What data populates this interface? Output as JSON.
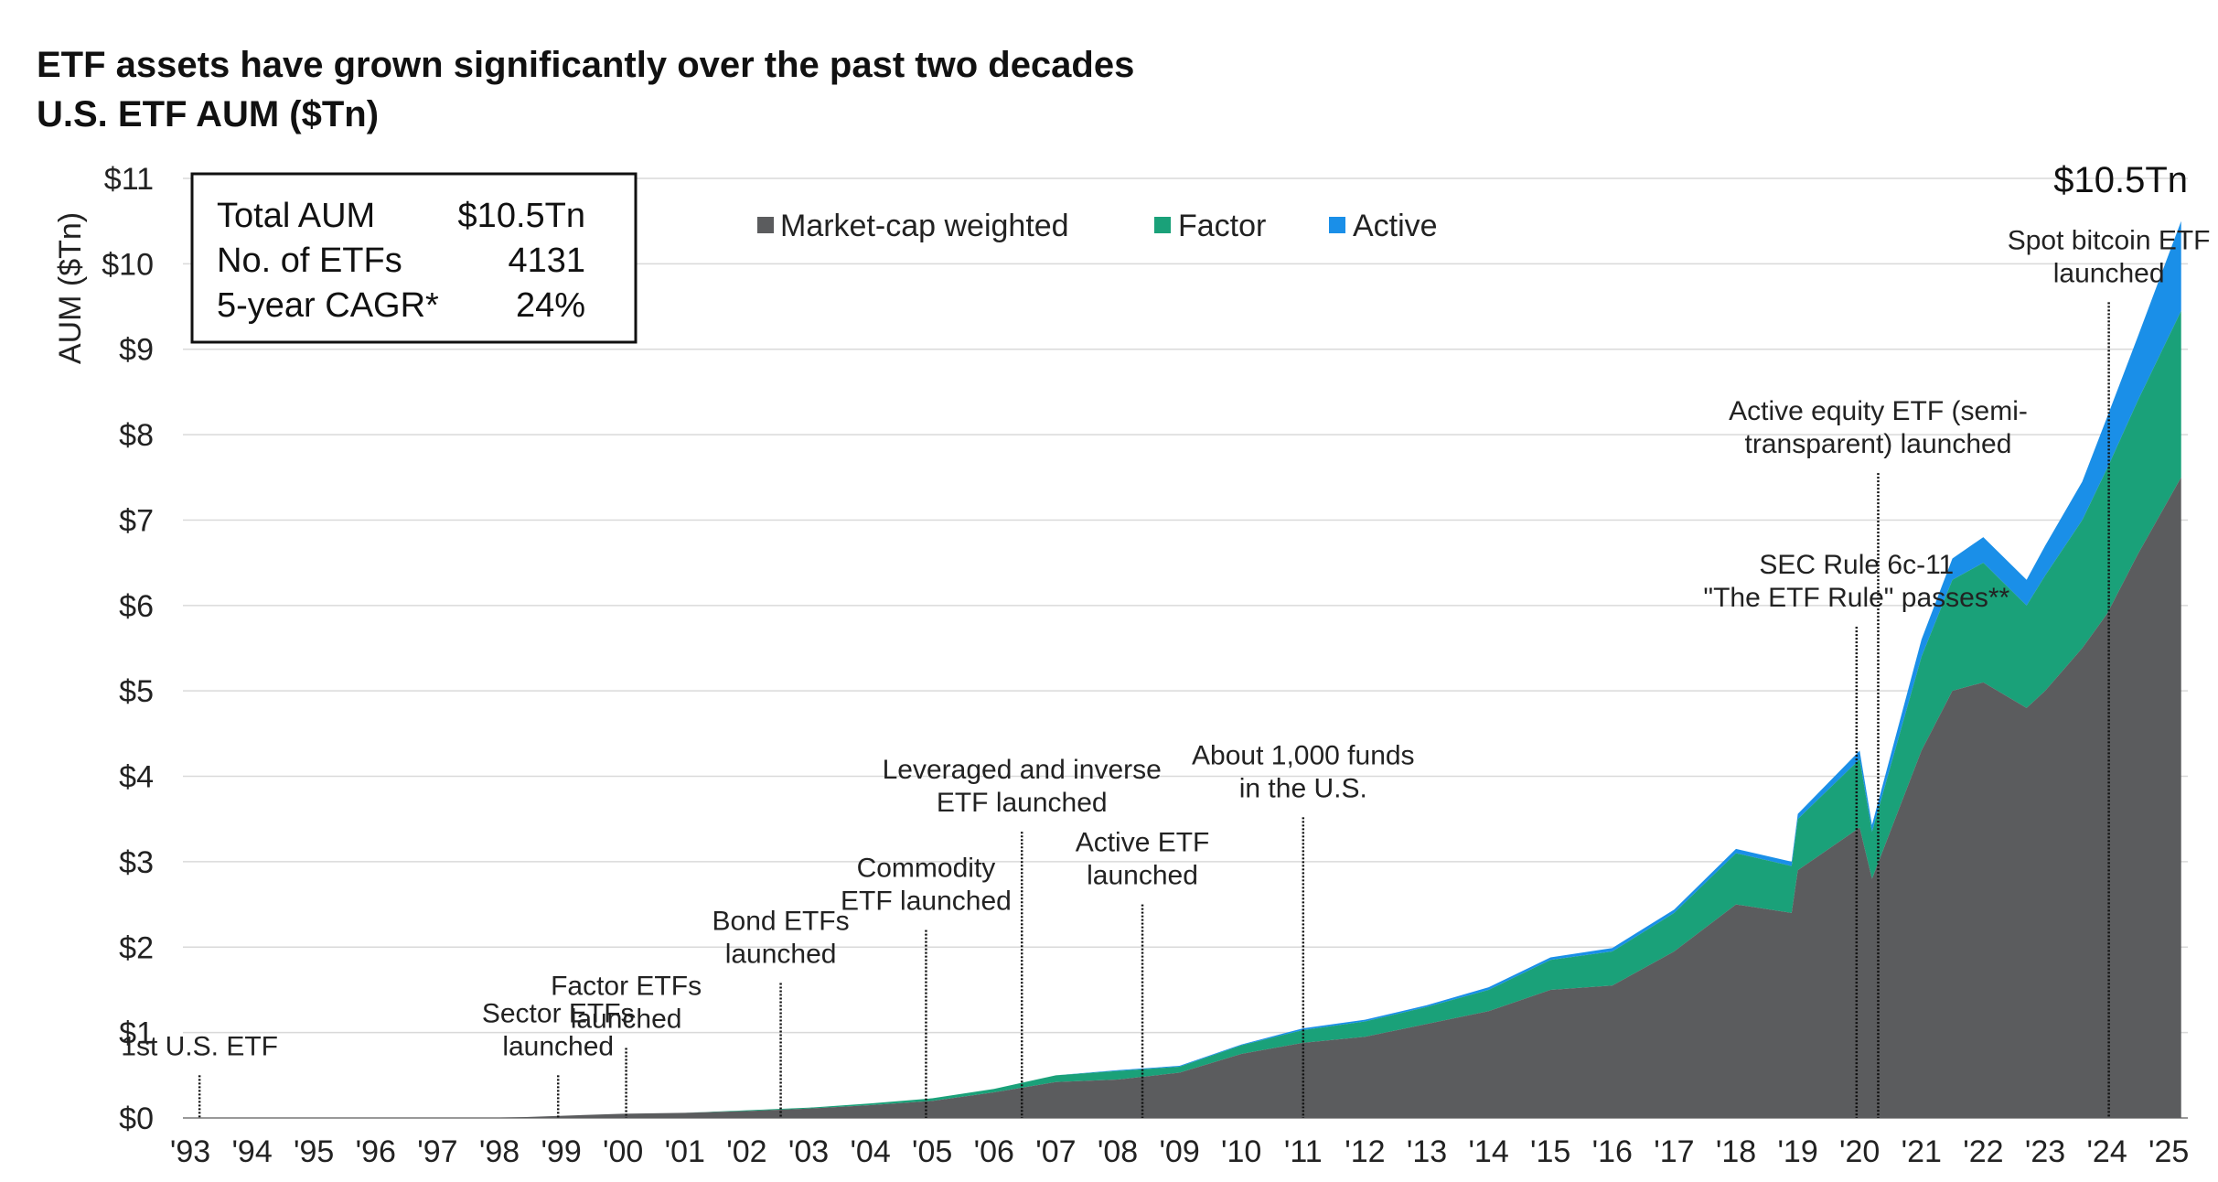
{
  "chart_data": {
    "type": "area",
    "title": "ETF assets have grown significantly over the past two decades",
    "subtitle": "U.S. ETF AUM ($Tn)",
    "ylabel": "AUM ($Tn)",
    "xlabel": "",
    "ylim": [
      0,
      11
    ],
    "y_ticks": [
      "$0",
      "$1",
      "$2",
      "$3",
      "$4",
      "$5",
      "$6",
      "$7",
      "$8",
      "$9",
      "$10",
      "$11"
    ],
    "x_ticks": [
      "'93",
      "'94",
      "'95",
      "'96",
      "'97",
      "'98",
      "'99",
      "'00",
      "'01",
      "'02",
      "'03",
      "'04",
      "'05",
      "'06",
      "'07",
      "'08",
      "'09",
      "'10",
      "'11",
      "'12",
      "'13",
      "'14",
      "'15",
      "'16",
      "'17",
      "'18",
      "'19",
      "'20",
      "'21",
      "'22",
      "'23",
      "'24",
      "'25"
    ],
    "grid": "horizontal",
    "legend_position": "top-center",
    "colors": {
      "Market-cap weighted": "#5b5c5e",
      "Factor": "#1aa179",
      "Active": "#1a8fe8"
    },
    "series": [
      {
        "name": "Market-cap weighted",
        "x": [
          1993,
          1998,
          2000,
          2001,
          2002,
          2003,
          2004,
          2005,
          2006,
          2007,
          2008,
          2009,
          2010,
          2011,
          2012,
          2013,
          2014,
          2015,
          2016,
          2017,
          2018,
          2018.9,
          2019,
          2020,
          2020.2,
          2021,
          2021.5,
          2022,
          2022.7,
          2023,
          2023.6,
          2024,
          2024.5,
          2025.2
        ],
        "values": [
          0,
          0,
          0.05,
          0.06,
          0.08,
          0.11,
          0.15,
          0.2,
          0.3,
          0.42,
          0.45,
          0.53,
          0.75,
          0.88,
          0.95,
          1.1,
          1.25,
          1.5,
          1.55,
          1.95,
          2.5,
          2.4,
          2.9,
          3.4,
          2.8,
          4.3,
          5.0,
          5.1,
          4.8,
          5.0,
          5.5,
          5.9,
          6.6,
          7.5
        ]
      },
      {
        "name": "Factor",
        "x": [
          1993,
          1998,
          2000,
          2001,
          2002,
          2003,
          2004,
          2005,
          2006,
          2007,
          2008,
          2009,
          2010,
          2011,
          2012,
          2013,
          2014,
          2015,
          2016,
          2017,
          2018,
          2018.9,
          2019,
          2020,
          2020.2,
          2021,
          2021.5,
          2022,
          2022.7,
          2023,
          2023.6,
          2024,
          2024.5,
          2025.2
        ],
        "values": [
          0,
          0,
          0,
          0,
          0.01,
          0.01,
          0.02,
          0.03,
          0.04,
          0.08,
          0.1,
          0.07,
          0.1,
          0.15,
          0.18,
          0.2,
          0.25,
          0.35,
          0.4,
          0.45,
          0.6,
          0.55,
          0.6,
          0.8,
          0.55,
          1.1,
          1.3,
          1.4,
          1.2,
          1.35,
          1.5,
          1.7,
          1.8,
          1.95
        ]
      },
      {
        "name": "Active",
        "x": [
          1993,
          1998,
          2000,
          2001,
          2002,
          2003,
          2004,
          2005,
          2006,
          2007,
          2008,
          2009,
          2010,
          2011,
          2012,
          2013,
          2014,
          2015,
          2016,
          2017,
          2018,
          2018.9,
          2019,
          2020,
          2020.2,
          2021,
          2021.5,
          2022,
          2022.7,
          2023,
          2023.6,
          2024,
          2024.5,
          2025.2
        ],
        "values": [
          0,
          0,
          0,
          0,
          0,
          0,
          0,
          0,
          0,
          0,
          0.01,
          0.01,
          0.01,
          0.02,
          0.02,
          0.02,
          0.03,
          0.03,
          0.04,
          0.04,
          0.05,
          0.05,
          0.06,
          0.1,
          0.08,
          0.2,
          0.25,
          0.3,
          0.3,
          0.35,
          0.45,
          0.6,
          0.75,
          1.05
        ]
      }
    ],
    "annotations": [
      {
        "x": 1993.15,
        "y_top": 0.5,
        "lines": [
          "1st U.S. ETF"
        ]
      },
      {
        "x": 1998.95,
        "y_top": 0.5,
        "lines": [
          "Sector ETFs",
          "launched"
        ]
      },
      {
        "x": 2000.05,
        "y_top": 0.82,
        "lines": [
          "Factor ETFs",
          "launched"
        ]
      },
      {
        "x": 2002.55,
        "y_top": 1.58,
        "lines": [
          "Bond ETFs",
          "launched"
        ]
      },
      {
        "x": 2004.9,
        "y_top": 2.2,
        "lines": [
          "Commodity",
          "ETF launched"
        ]
      },
      {
        "x": 2006.45,
        "y_top": 3.35,
        "lines": [
          "Leveraged and inverse",
          "ETF launched"
        ]
      },
      {
        "x": 2008.4,
        "y_top": 2.5,
        "lines": [
          "Active ETF",
          "launched"
        ]
      },
      {
        "x": 2011.0,
        "y_top": 3.52,
        "lines": [
          "About 1,000 funds",
          "in the U.S."
        ]
      },
      {
        "x": 2019.95,
        "y_top": 5.75,
        "lines": [
          "SEC Rule 6c-11",
          "\"The ETF Rule\" passes**"
        ]
      },
      {
        "x": 2020.3,
        "y_top": 7.55,
        "lines": [
          "Active equity ETF (semi-",
          "transparent) launched"
        ]
      },
      {
        "x": 2024.03,
        "y_top": 9.55,
        "lines": [
          "Spot bitcoin ETF",
          "launched"
        ]
      }
    ],
    "end_label": "$10.5Tn"
  },
  "summary_box": {
    "rows": [
      {
        "label": "Total AUM",
        "value": "$10.5Tn"
      },
      {
        "label": "No. of ETFs",
        "value": "4131"
      },
      {
        "label": "5-year CAGR*",
        "value": "24%"
      }
    ]
  }
}
